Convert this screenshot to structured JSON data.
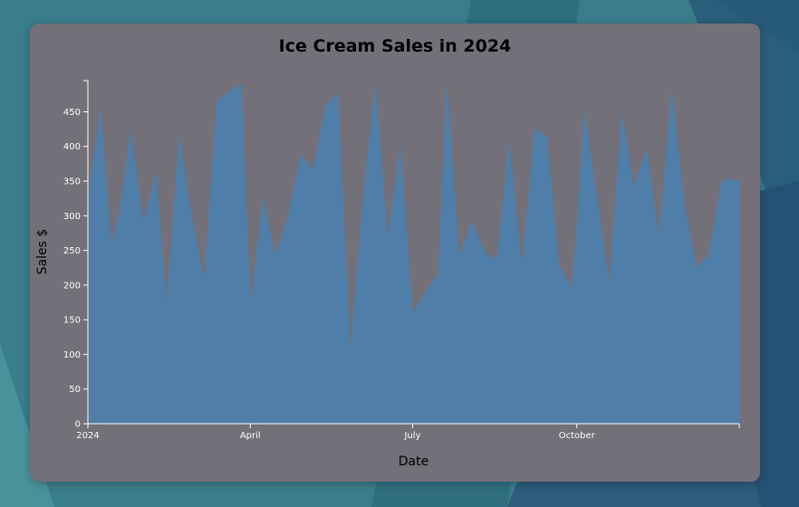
{
  "colors": {
    "card_background": "#737079",
    "area_fill": "#4f7ea8",
    "axis": "#ffffff",
    "desktop_background": "#3a7d8c"
  },
  "chart_data": {
    "type": "area",
    "title": "Ice Cream Sales in 2024",
    "xlabel": "Date",
    "ylabel": "Sales $",
    "ylim": [
      0,
      495
    ],
    "y_ticks": [
      "0",
      "50",
      "100",
      "150",
      "200",
      "250",
      "300",
      "350",
      "400",
      "450"
    ],
    "x_ticks": [
      {
        "date": "2024-01-01",
        "label": "2024"
      },
      {
        "date": "2024-04-01",
        "label": "April"
      },
      {
        "date": "2024-07-01",
        "label": "July"
      },
      {
        "date": "2024-10-01",
        "label": "October"
      }
    ],
    "grid": false,
    "legend": "none",
    "x_domain": [
      "2024-01-01",
      "2024-12-31"
    ],
    "series": [
      {
        "x": [
          "2024-01-01",
          "2024-01-08",
          "2024-01-14",
          "2024-01-18",
          "2024-01-25",
          "2024-02-01",
          "2024-02-08",
          "2024-02-14",
          "2024-02-21",
          "2024-02-28",
          "2024-03-06",
          "2024-03-13",
          "2024-03-20",
          "2024-03-27",
          "2024-04-01",
          "2024-04-08",
          "2024-04-15",
          "2024-04-22",
          "2024-04-29",
          "2024-05-06",
          "2024-05-13",
          "2024-05-20",
          "2024-05-27",
          "2024-06-03",
          "2024-06-10",
          "2024-06-17",
          "2024-06-24",
          "2024-07-01",
          "2024-07-08",
          "2024-07-15",
          "2024-07-20",
          "2024-07-27",
          "2024-08-03",
          "2024-08-10",
          "2024-08-17",
          "2024-08-24",
          "2024-08-31",
          "2024-09-07",
          "2024-09-14",
          "2024-09-21",
          "2024-09-28",
          "2024-10-01",
          "2024-10-05",
          "2024-10-12",
          "2024-10-19",
          "2024-10-26",
          "2024-11-02",
          "2024-11-09",
          "2024-11-16",
          "2024-11-23",
          "2024-11-30",
          "2024-12-07",
          "2024-12-14",
          "2024-12-21",
          "2024-12-31"
        ],
        "values": [
          330,
          460,
          262,
          300,
          425,
          290,
          365,
          175,
          418,
          300,
          210,
          465,
          480,
          490,
          175,
          328,
          243,
          300,
          388,
          367,
          460,
          478,
          113,
          328,
          492,
          270,
          403,
          160,
          190,
          215,
          495,
          243,
          293,
          248,
          237,
          410,
          228,
          425,
          415,
          230,
          195,
          295,
          455,
          330,
          205,
          450,
          343,
          398,
          270,
          487,
          320,
          225,
          245,
          352,
          352
        ]
      }
    ]
  }
}
